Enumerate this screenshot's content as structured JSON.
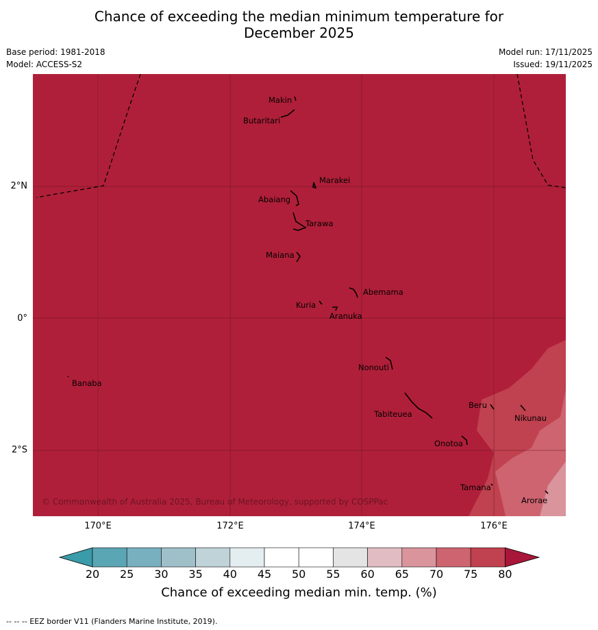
{
  "header": {
    "title_line1": "Chance of exceeding the median minimum temperature for",
    "title_line2": "December 2025",
    "base_period": "Base period: 1981-2018",
    "model": "Model: ACCESS-S2",
    "model_run": "Model run: 17/11/2025",
    "issued": "Issued: 19/11/2025"
  },
  "map": {
    "lat_labels": [
      "2°N",
      "0°",
      "2°S"
    ],
    "lon_labels": [
      "170°E",
      "172°E",
      "174°E",
      "176°E"
    ],
    "places": [
      "Makin",
      "Butaritari",
      "Marakei",
      "Abaiang",
      "Tarawa",
      "Maiana",
      "Abemama",
      "Kuria",
      "Aranuka",
      "Banaba",
      "Nonouti",
      "Beru",
      "Tabiteuea",
      "Nikunau",
      "Onotoa",
      "Tamana",
      "Arorae"
    ],
    "copyright": "© Commonwealth of Australia 2025, Bureau of Meteorology, supported by COSPPac",
    "colors": {
      "c80_plus": "#b01f39",
      "c75_80": "#c0414f",
      "c70_75": "#cd6470",
      "c65_70": "#d9949c"
    }
  },
  "colorbar": {
    "ticks": [
      "20",
      "25",
      "30",
      "35",
      "40",
      "45",
      "50",
      "55",
      "60",
      "65",
      "70",
      "75",
      "80"
    ],
    "label": "Chance of exceeding median min. temp. (%)",
    "colors": [
      "#5ba6b5",
      "#79b0bf",
      "#9fbfc9",
      "#c0d3d9",
      "#e4edf0",
      "#ffffff",
      "#ffffff",
      "#e4e4e4",
      "#e2bcc3",
      "#d9949c",
      "#cd6470",
      "#c0414f"
    ],
    "low_extend_color": "#3a9ba9",
    "high_extend_color": "#a8163a"
  },
  "footer": {
    "text": "--  --  -- EEZ border V11 (Flanders Marine Institute, 2019)."
  }
}
